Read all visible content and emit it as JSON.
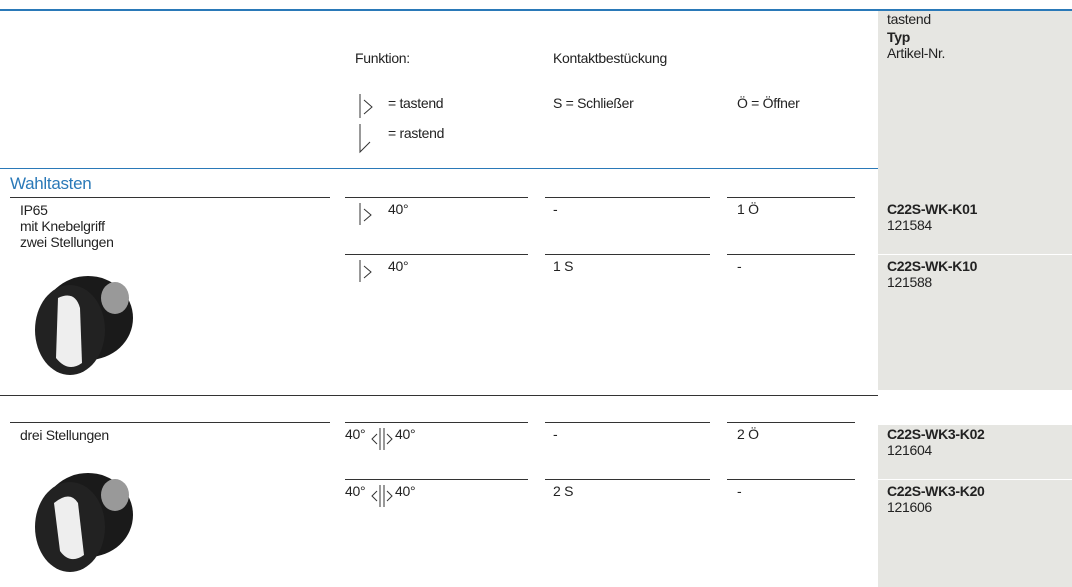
{
  "header": {
    "function_label": "Funktion:",
    "contact_label": "Kontaktbestückung",
    "legend": {
      "tastend": "= tastend",
      "rastend": "= rastend",
      "schliesser": "S = Schließer",
      "oeffner": "Ö = Öffner"
    },
    "right": {
      "mode": "tastend",
      "typ": "Typ",
      "artikel": "Artikel-Nr."
    }
  },
  "section": "Wahltasten",
  "groups": [
    {
      "description": [
        "IP65",
        "mit Knebelgriff",
        "zwei Stellungen"
      ],
      "rows": [
        {
          "angle": "40°",
          "kontakt_s": "-",
          "kontakt_o": "1 Ö",
          "typ": "C22S-WK-K01",
          "artikel": "121584"
        },
        {
          "angle": "40°",
          "kontakt_s": "1 S",
          "kontakt_o": "-",
          "typ": "C22S-WK-K10",
          "artikel": "121588"
        }
      ]
    },
    {
      "description": [
        "drei Stellungen"
      ],
      "rows": [
        {
          "angle_left": "40°",
          "angle": "40°",
          "kontakt_s": "-",
          "kontakt_o": "2 Ö",
          "typ": "C22S-WK3-K02",
          "artikel": "121604"
        },
        {
          "angle_left": "40°",
          "angle": "40°",
          "kontakt_s": "2 S",
          "kontakt_o": "-",
          "typ": "C22S-WK3-K20",
          "artikel": "121606"
        }
      ]
    }
  ]
}
